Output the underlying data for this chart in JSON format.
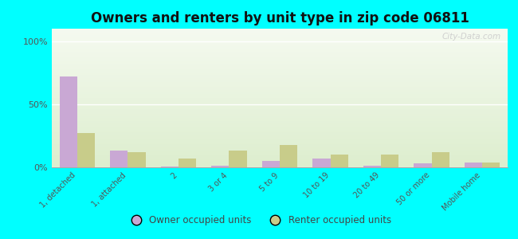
{
  "title": "Owners and renters by unit type in zip code 06811",
  "categories": [
    "1, detached",
    "1, attached",
    "2",
    "3 or 4",
    "5 to 9",
    "10 to 19",
    "20 to 49",
    "50 or more",
    "Mobile home"
  ],
  "owner_values": [
    72,
    13,
    0.5,
    1,
    5,
    7,
    1,
    3,
    4
  ],
  "renter_values": [
    27,
    12,
    7,
    13,
    18,
    10,
    10,
    12,
    4
  ],
  "owner_color": "#c9a8d4",
  "renter_color": "#c8cc8a",
  "background_color": "#00ffff",
  "title_fontsize": 12,
  "ylabel_ticks": [
    "0%",
    "50%",
    "100%"
  ],
  "yticks": [
    0,
    50,
    100
  ],
  "ylim": [
    0,
    110
  ],
  "watermark": "City-Data.com",
  "legend_owner": "Owner occupied units",
  "legend_renter": "Renter occupied units",
  "plot_bg_top_color": "#f5faf0",
  "plot_bg_bottom_color": "#ddeece"
}
